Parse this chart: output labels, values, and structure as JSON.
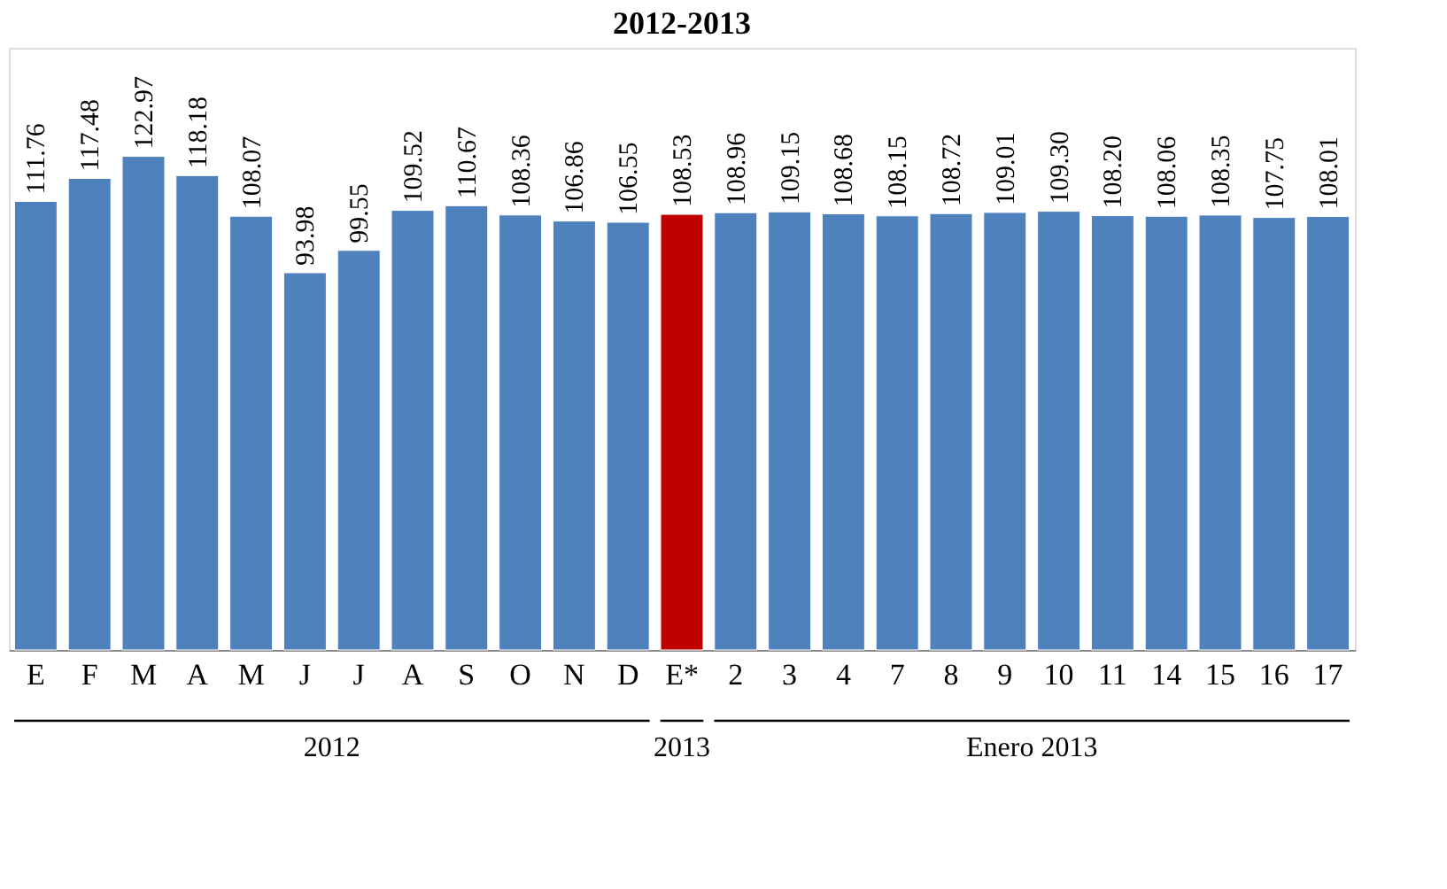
{
  "chart_data": {
    "type": "bar",
    "title": "2012-2013",
    "categories": [
      "E",
      "F",
      "M",
      "A",
      "M",
      "J",
      "J",
      "A",
      "S",
      "O",
      "N",
      "D",
      "E*",
      "2",
      "3",
      "4",
      "7",
      "8",
      "9",
      "10",
      "11",
      "14",
      "15",
      "16",
      "17"
    ],
    "values": [
      111.76,
      117.48,
      122.97,
      118.18,
      108.07,
      93.98,
      99.55,
      109.52,
      110.67,
      108.36,
      106.86,
      106.55,
      108.53,
      108.96,
      109.15,
      108.68,
      108.15,
      108.72,
      109.01,
      109.3,
      108.2,
      108.06,
      108.35,
      107.75,
      108.01
    ],
    "colors": [
      "#4f81bd",
      "#4f81bd",
      "#4f81bd",
      "#4f81bd",
      "#4f81bd",
      "#4f81bd",
      "#4f81bd",
      "#4f81bd",
      "#4f81bd",
      "#4f81bd",
      "#4f81bd",
      "#4f81bd",
      "#c00000",
      "#4f81bd",
      "#4f81bd",
      "#4f81bd",
      "#4f81bd",
      "#4f81bd",
      "#4f81bd",
      "#4f81bd",
      "#4f81bd",
      "#4f81bd",
      "#4f81bd",
      "#4f81bd",
      "#4f81bd"
    ],
    "value_labels": [
      "111.76",
      "117.48",
      "122.97",
      "118.18",
      "108.07",
      "93.98",
      "99.55",
      "109.52",
      "110.67",
      "108.36",
      "106.86",
      "106.55",
      "108.53",
      "108.96",
      "109.15",
      "108.68",
      "108.15",
      "108.72",
      "109.01",
      "109.30",
      "108.20",
      "108.06",
      "108.35",
      "107.75",
      "108.01"
    ],
    "annotations": [
      "2012",
      "2013",
      "Enero 2013"
    ],
    "grid": false
  }
}
